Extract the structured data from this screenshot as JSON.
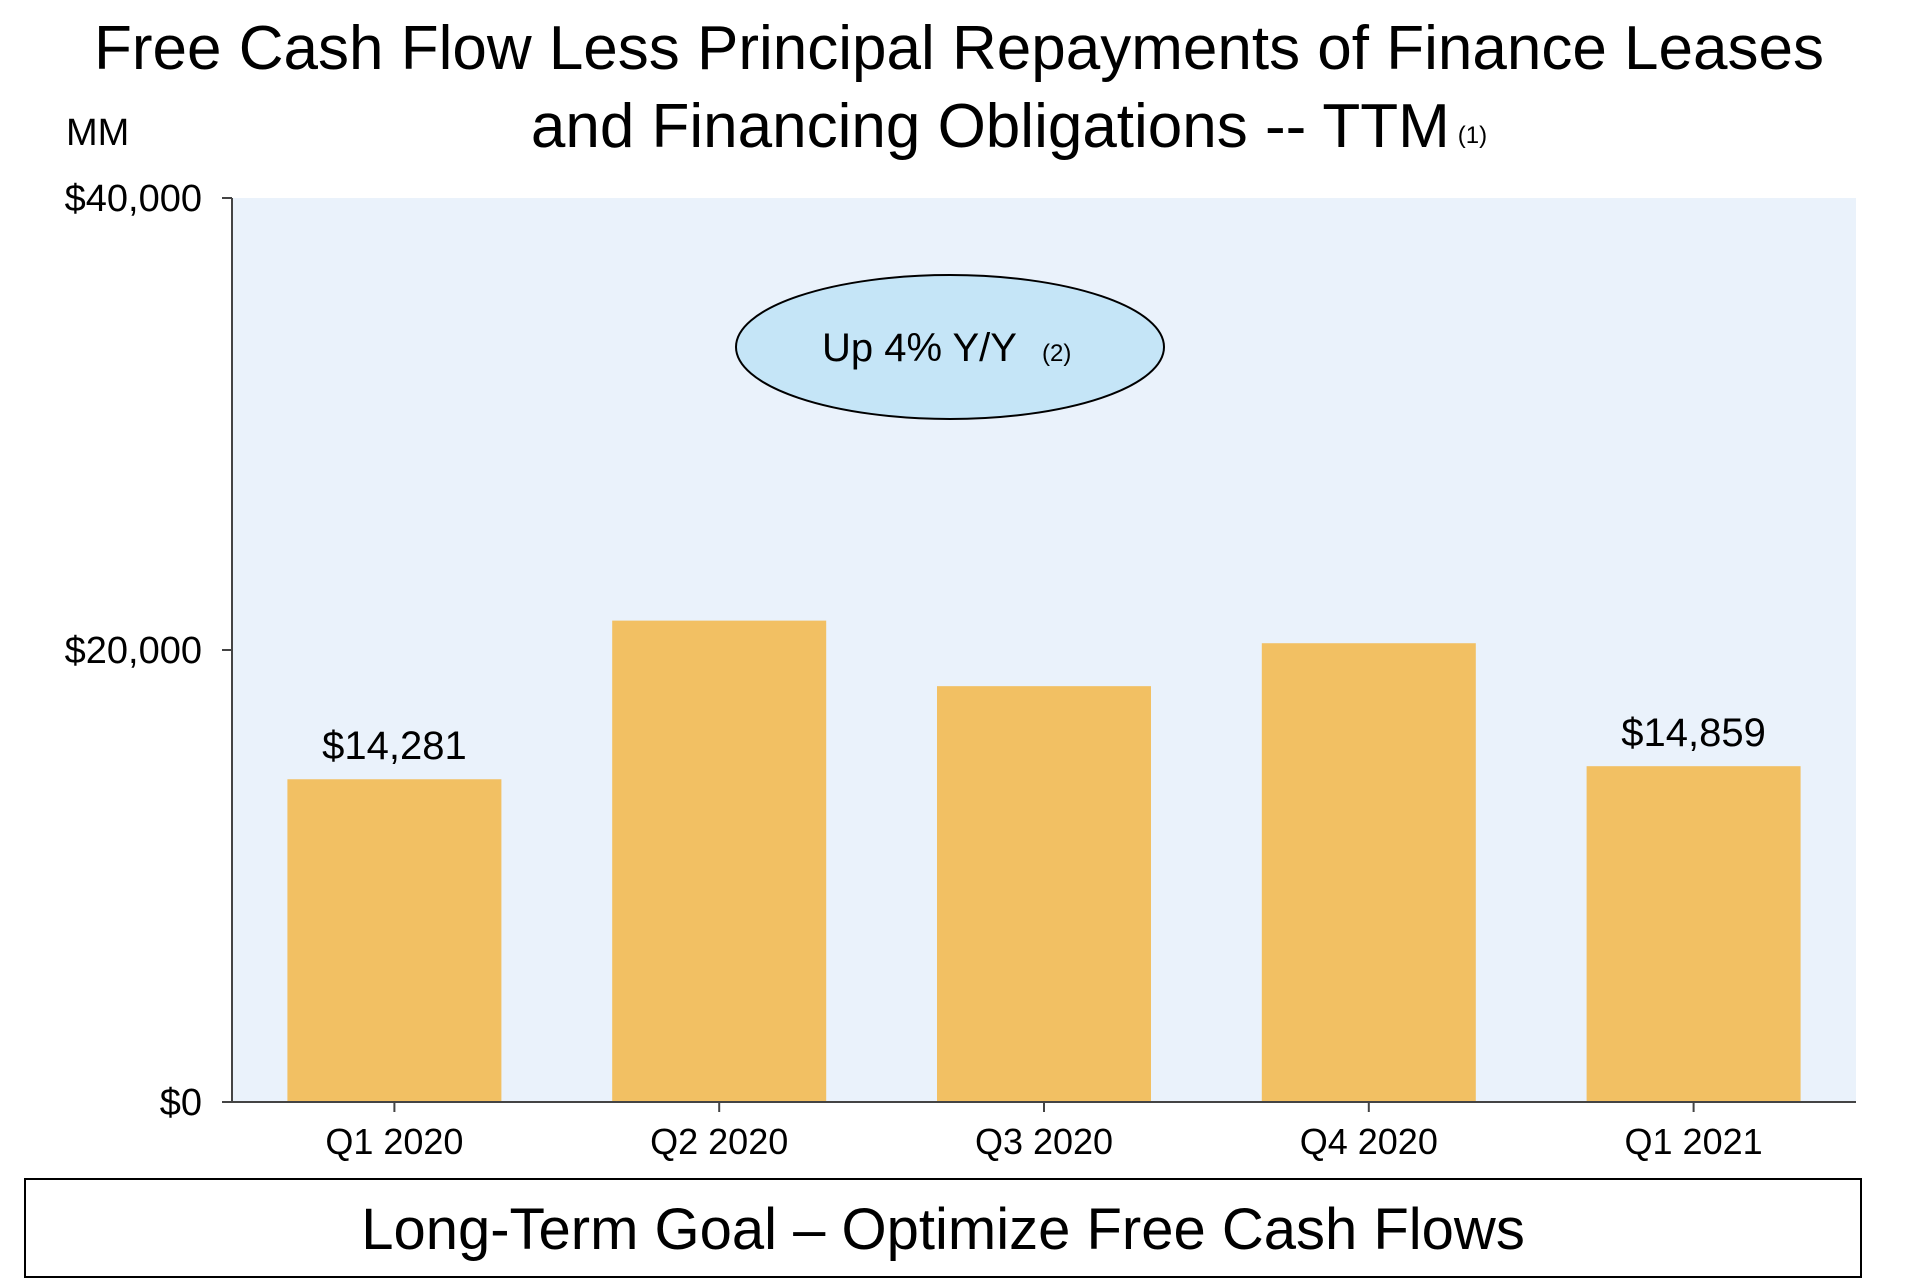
{
  "title": {
    "line1": "Free Cash Flow Less Principal Repayments of Finance Leases",
    "line2": "and Financing Obligations -- TTM",
    "note": "(1)"
  },
  "unit_label": "MM",
  "footer": "Long-Term Goal – Optimize Free Cash Flows",
  "callout": {
    "text": "Up 4% Y/Y",
    "note": "(2)"
  },
  "colors": {
    "bar": "#F2C063",
    "plot_background": "#EAF2FB",
    "callout_fill": "#C5E5F7",
    "axis": "#444444"
  },
  "chart_data": {
    "type": "bar",
    "categories": [
      "Q1 2020",
      "Q2 2020",
      "Q3 2020",
      "Q4 2020",
      "Q1 2021"
    ],
    "values": [
      14281,
      21300,
      18400,
      20300,
      14859
    ],
    "data_labels": [
      "$14,281",
      "",
      "",
      "",
      "$14,859"
    ],
    "ylim": [
      0,
      40000
    ],
    "yticks": [
      0,
      20000,
      40000
    ],
    "ytick_labels": [
      "$0",
      "$20,000",
      "$40,000"
    ],
    "ylabel": "MM",
    "grid": false
  }
}
